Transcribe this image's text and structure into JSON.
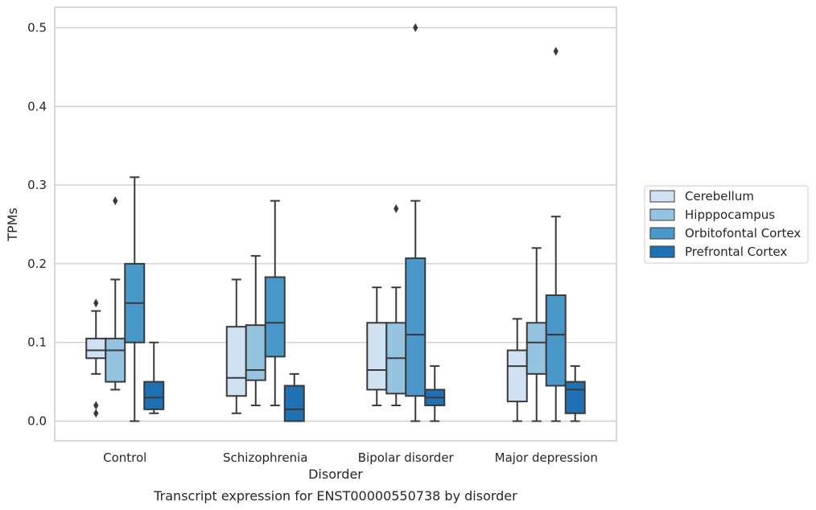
{
  "caption": "Transcript expression for ENST00000550738 by disorder",
  "chart_data": {
    "type": "box",
    "xlabel": "Disorder",
    "ylabel": "TPMs",
    "ylim": [
      -0.025,
      0.526
    ],
    "yticks": [
      "0.0",
      "0.1",
      "0.2",
      "0.3",
      "0.4",
      "0.5"
    ],
    "grid": true,
    "legend_position": "right",
    "categories": [
      "Control",
      "Schizophrenia",
      "Bipolar disorder",
      "Major depression"
    ],
    "series": [
      {
        "name": "Cerebellum",
        "color": "#d0e1f2",
        "boxes": [
          {
            "whislo": 0.06,
            "q1": 0.08,
            "med": 0.09,
            "q3": 0.105,
            "whishi": 0.14,
            "fliers": [
              0.15,
              0.02,
              0.01
            ]
          },
          {
            "whislo": 0.01,
            "q1": 0.032,
            "med": 0.055,
            "q3": 0.12,
            "whishi": 0.18,
            "fliers": []
          },
          {
            "whislo": 0.02,
            "q1": 0.04,
            "med": 0.065,
            "q3": 0.125,
            "whishi": 0.17,
            "fliers": []
          },
          {
            "whislo": 0.0,
            "q1": 0.025,
            "med": 0.07,
            "q3": 0.09,
            "whishi": 0.13,
            "fliers": []
          }
        ]
      },
      {
        "name": "Hipppocampus",
        "color": "#94c4df",
        "boxes": [
          {
            "whislo": 0.04,
            "q1": 0.05,
            "med": 0.09,
            "q3": 0.105,
            "whishi": 0.18,
            "fliers": [
              0.28
            ]
          },
          {
            "whislo": 0.02,
            "q1": 0.052,
            "med": 0.065,
            "q3": 0.122,
            "whishi": 0.21,
            "fliers": []
          },
          {
            "whislo": 0.02,
            "q1": 0.035,
            "med": 0.08,
            "q3": 0.125,
            "whishi": 0.17,
            "fliers": [
              0.27
            ]
          },
          {
            "whislo": 0.0,
            "q1": 0.06,
            "med": 0.1,
            "q3": 0.125,
            "whishi": 0.22,
            "fliers": []
          }
        ]
      },
      {
        "name": "Orbitofontal Cortex",
        "color": "#4a98c9",
        "boxes": [
          {
            "whislo": 0.0,
            "q1": 0.1,
            "med": 0.15,
            "q3": 0.2,
            "whishi": 0.31,
            "fliers": []
          },
          {
            "whislo": 0.02,
            "q1": 0.082,
            "med": 0.125,
            "q3": 0.183,
            "whishi": 0.28,
            "fliers": []
          },
          {
            "whislo": 0.0,
            "q1": 0.032,
            "med": 0.11,
            "q3": 0.207,
            "whishi": 0.28,
            "fliers": [
              0.5
            ]
          },
          {
            "whislo": 0.0,
            "q1": 0.045,
            "med": 0.11,
            "q3": 0.16,
            "whishi": 0.26,
            "fliers": [
              0.47
            ]
          }
        ]
      },
      {
        "name": "Prefrontal Cortex",
        "color": "#2070b4",
        "boxes": [
          {
            "whislo": 0.01,
            "q1": 0.015,
            "med": 0.03,
            "q3": 0.05,
            "whishi": 0.1,
            "fliers": []
          },
          {
            "whislo": 0.0,
            "q1": 0.0,
            "med": 0.015,
            "q3": 0.045,
            "whishi": 0.06,
            "fliers": []
          },
          {
            "whislo": 0.0,
            "q1": 0.02,
            "med": 0.03,
            "q3": 0.04,
            "whishi": 0.07,
            "fliers": []
          },
          {
            "whislo": 0.0,
            "q1": 0.01,
            "med": 0.04,
            "q3": 0.05,
            "whishi": 0.07,
            "fliers": []
          }
        ]
      }
    ]
  }
}
